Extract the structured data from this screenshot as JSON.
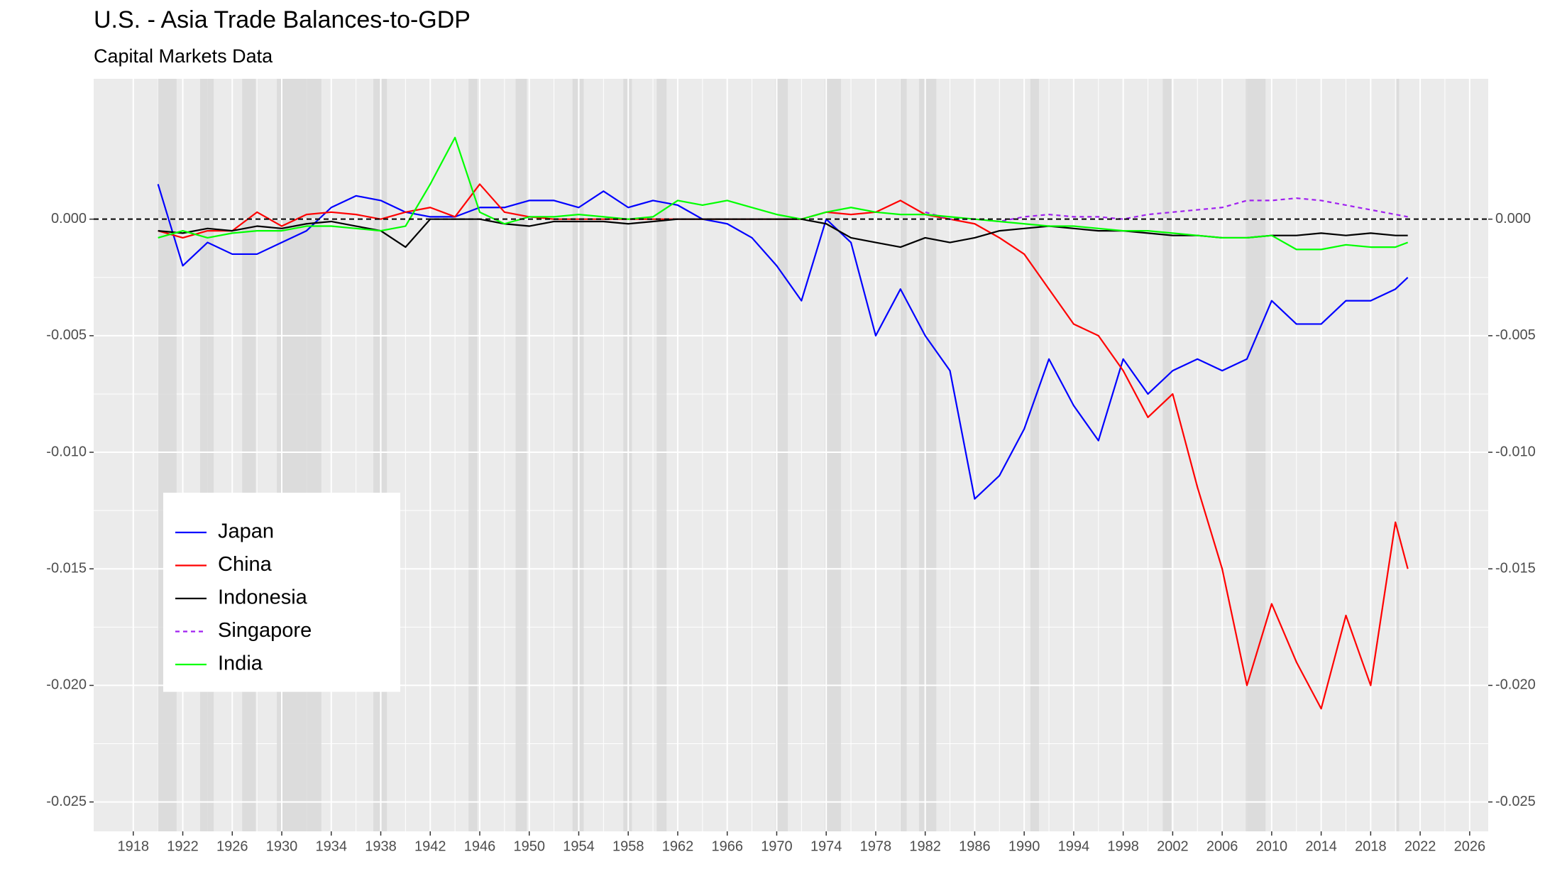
{
  "chart_data": {
    "type": "line",
    "title": "U.S. - Asia Trade Balances-to-GDP",
    "subtitle": "Capital Markets Data",
    "x": [
      1920,
      1922,
      1924,
      1926,
      1928,
      1930,
      1932,
      1934,
      1936,
      1938,
      1940,
      1942,
      1944,
      1946,
      1948,
      1950,
      1952,
      1954,
      1956,
      1958,
      1960,
      1962,
      1964,
      1966,
      1968,
      1970,
      1972,
      1974,
      1976,
      1978,
      1980,
      1982,
      1984,
      1986,
      1988,
      1990,
      1992,
      1994,
      1996,
      1998,
      2000,
      2002,
      2004,
      2006,
      2008,
      2010,
      2012,
      2014,
      2016,
      2018,
      2020,
      2021
    ],
    "series": [
      {
        "name": "Japan",
        "color": "#0000ff",
        "values": [
          0.0015,
          -0.002,
          -0.001,
          -0.0015,
          -0.0015,
          -0.001,
          -0.0005,
          0.0005,
          0.001,
          0.0008,
          0.0003,
          0.0001,
          0.0001,
          0.0005,
          0.0005,
          0.0008,
          0.0008,
          0.0005,
          0.0012,
          0.0005,
          0.0008,
          0.0006,
          0.0,
          -0.0002,
          -0.0008,
          -0.002,
          -0.0035,
          0.0,
          -0.001,
          -0.005,
          -0.003,
          -0.005,
          -0.0065,
          -0.012,
          -0.011,
          -0.009,
          -0.006,
          -0.008,
          -0.0095,
          -0.006,
          -0.0075,
          -0.0065,
          -0.006,
          -0.0065,
          -0.006,
          -0.0035,
          -0.0045,
          -0.0045,
          -0.0035,
          -0.0035,
          -0.003,
          -0.0025
        ]
      },
      {
        "name": "China",
        "color": "#ff0000",
        "values": [
          -0.0005,
          -0.0008,
          -0.0005,
          -0.0005,
          0.0003,
          -0.0003,
          0.0002,
          0.0003,
          0.0002,
          0.0,
          0.0003,
          0.0005,
          0.0001,
          0.0015,
          0.0003,
          0.0001,
          0.0,
          0.0,
          0.0,
          0.0,
          0.0,
          0.0,
          0.0,
          0.0,
          0.0,
          0.0,
          0.0,
          0.0003,
          0.0002,
          0.0003,
          0.0008,
          0.0002,
          0.0,
          -0.0002,
          -0.0008,
          -0.0015,
          -0.003,
          -0.0045,
          -0.005,
          -0.0065,
          -0.0085,
          -0.0075,
          -0.0115,
          -0.015,
          -0.02,
          -0.0165,
          -0.019,
          -0.021,
          -0.017,
          -0.02,
          -0.013,
          -0.015
        ]
      },
      {
        "name": "Indonesia",
        "color": "#000000",
        "values": [
          -0.0005,
          -0.0006,
          -0.0004,
          -0.0005,
          -0.0003,
          -0.0004,
          -0.0002,
          -0.0001,
          -0.0003,
          -0.0005,
          -0.0012,
          0.0,
          0.0,
          0.0,
          -0.0002,
          -0.0003,
          -0.0001,
          -0.0001,
          -0.0001,
          -0.0002,
          -0.0001,
          0.0,
          0.0,
          0.0,
          0.0,
          0.0,
          0.0,
          -0.0002,
          -0.0008,
          -0.001,
          -0.0012,
          -0.0008,
          -0.001,
          -0.0008,
          -0.0005,
          -0.0004,
          -0.0003,
          -0.0004,
          -0.0005,
          -0.0005,
          -0.0006,
          -0.0007,
          -0.0007,
          -0.0008,
          -0.0008,
          -0.0007,
          -0.0007,
          -0.0006,
          -0.0007,
          -0.0006,
          -0.0007,
          -0.0007
        ]
      },
      {
        "name": "Singapore",
        "color": "#a020f0",
        "linetype": "dashed",
        "values": [
          null,
          null,
          null,
          null,
          null,
          null,
          null,
          null,
          null,
          null,
          null,
          null,
          null,
          null,
          null,
          null,
          null,
          null,
          null,
          null,
          null,
          null,
          null,
          null,
          null,
          null,
          null,
          null,
          null,
          null,
          null,
          0.0003,
          0.0,
          0.0,
          -0.0001,
          0.0001,
          0.0002,
          0.0001,
          0.0001,
          0.0,
          0.0002,
          0.0003,
          0.0004,
          0.0005,
          0.0008,
          0.0008,
          0.0009,
          0.0008,
          0.0006,
          0.0004,
          0.0002,
          0.0001
        ]
      },
      {
        "name": "India",
        "color": "#00ff00",
        "values": [
          -0.0008,
          -0.0005,
          -0.0008,
          -0.0006,
          -0.0005,
          -0.0005,
          -0.0003,
          -0.0003,
          -0.0004,
          -0.0005,
          -0.0003,
          0.0015,
          0.0035,
          0.0003,
          -0.0002,
          0.0001,
          0.0001,
          0.0002,
          0.0001,
          0.0,
          0.0001,
          0.0008,
          0.0006,
          0.0008,
          0.0005,
          0.0002,
          0.0,
          0.0003,
          0.0005,
          0.0003,
          0.0002,
          0.0002,
          0.0001,
          0.0,
          -0.0001,
          -0.0002,
          -0.0003,
          -0.0003,
          -0.0004,
          -0.0005,
          -0.0005,
          -0.0006,
          -0.0007,
          -0.0008,
          -0.0008,
          -0.0007,
          -0.0013,
          -0.0013,
          -0.0011,
          -0.0012,
          -0.0012,
          -0.001
        ]
      }
    ],
    "shaded_periods": [
      [
        1920.0,
        1921.5
      ],
      [
        1923.4,
        1924.5
      ],
      [
        1926.8,
        1927.9
      ],
      [
        1929.6,
        1933.2
      ],
      [
        1937.4,
        1938.5
      ],
      [
        1945.1,
        1945.8
      ],
      [
        1948.9,
        1949.8
      ],
      [
        1953.5,
        1954.4
      ],
      [
        1957.6,
        1958.3
      ],
      [
        1960.3,
        1961.1
      ],
      [
        1969.9,
        1970.9
      ],
      [
        1973.9,
        1975.2
      ],
      [
        1980.0,
        1980.5
      ],
      [
        1981.5,
        1982.9
      ],
      [
        1990.5,
        1991.2
      ],
      [
        2001.2,
        2001.9
      ],
      [
        2007.9,
        2009.5
      ],
      [
        2020.1,
        2020.3
      ]
    ],
    "hline": 0,
    "xlim": [
      1914.8,
      2027.5
    ],
    "ylim": [
      -0.02626,
      0.00602
    ],
    "xticks": [
      1918,
      1922,
      1926,
      1930,
      1934,
      1938,
      1942,
      1946,
      1950,
      1954,
      1958,
      1962,
      1966,
      1970,
      1974,
      1978,
      1982,
      1986,
      1990,
      1994,
      1998,
      2002,
      2006,
      2010,
      2014,
      2018,
      2022,
      2026
    ],
    "yticks": [
      {
        "value": 0,
        "label": "0.000"
      },
      {
        "value": -0.005,
        "label": "-0.005"
      },
      {
        "value": -0.01,
        "label": "-0.010"
      },
      {
        "value": -0.015,
        "label": "-0.015"
      },
      {
        "value": -0.02,
        "label": "-0.020"
      },
      {
        "value": -0.025,
        "label": "-0.025"
      }
    ],
    "secondary_axis": true,
    "grid": true,
    "legend_position": "left"
  }
}
